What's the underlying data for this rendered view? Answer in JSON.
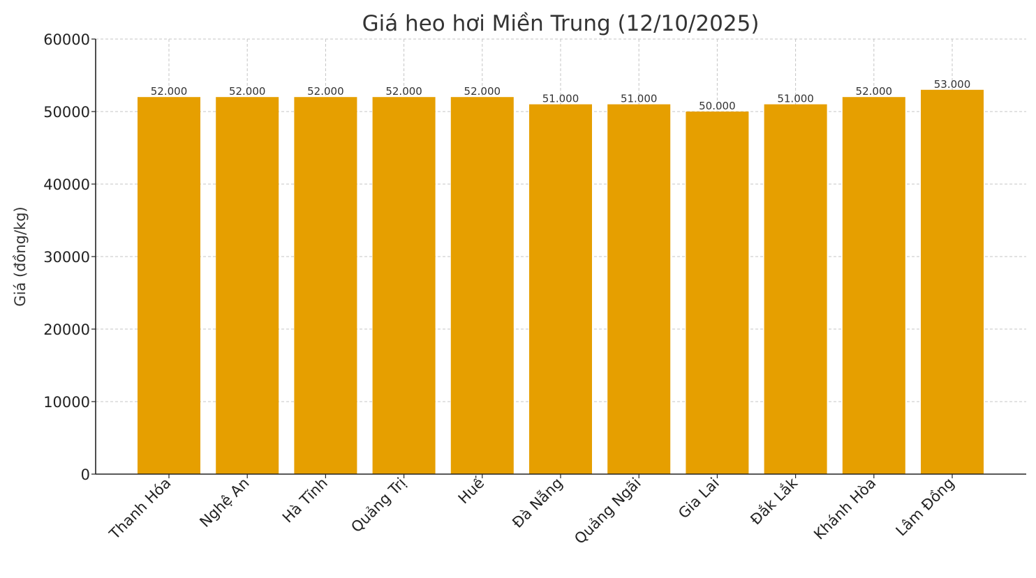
{
  "chart_data": {
    "type": "bar",
    "title": "Giá heo hơi Miền Trung (12/10/2025)",
    "xlabel": "",
    "ylabel": "Giá (đồng/kg)",
    "ylim": [
      0,
      60000
    ],
    "yticks": [
      "0",
      "10000",
      "20000",
      "30000",
      "40000",
      "50000",
      "60000"
    ],
    "grid": true,
    "categories": [
      "Thanh Hóa",
      "Nghệ An",
      "Hà Tĩnh",
      "Quảng Trị",
      "Huế",
      "Đà Nẵng",
      "Quảng Ngãi",
      "Gia Lai",
      "Đắk Lắk",
      "Khánh Hòa",
      "Lâm Đồng"
    ],
    "values": [
      52000,
      52000,
      52000,
      52000,
      52000,
      51000,
      51000,
      50000,
      51000,
      52000,
      53000
    ],
    "data_labels": [
      "52.000",
      "52.000",
      "52.000",
      "52.000",
      "52.000",
      "51.000",
      "51.000",
      "50.000",
      "51.000",
      "52.000",
      "53.000"
    ],
    "bar_color": "#E69F00"
  }
}
